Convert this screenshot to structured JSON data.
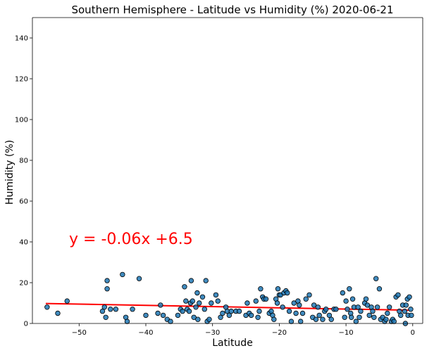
{
  "chart_data": {
    "type": "scatter",
    "title": "Southern Hemisphere - Latitude vs Humidity (%) 2020-06-21",
    "xlabel": "Latitude",
    "ylabel": "Humidity (%)",
    "xlim": [
      -57,
      1.5
    ],
    "ylim": [
      0,
      150
    ],
    "xticks": [
      -50,
      -40,
      -30,
      -20,
      -10,
      0
    ],
    "yticks": [
      0,
      20,
      40,
      60,
      80,
      100,
      120,
      140
    ],
    "grid": false,
    "annotation": "y = -0.06x +6.5",
    "colors": {
      "point": "#1f77b4",
      "edge": "#000000",
      "line": "#ff0000"
    },
    "regression": {
      "x": [
        -55,
        -0.5
      ],
      "y": [
        9.8,
        6.5
      ]
    },
    "series": [
      {
        "points": [
          [
            -54.8,
            8
          ],
          [
            -53.2,
            5
          ],
          [
            -51.8,
            11
          ],
          [
            -46.5,
            6
          ],
          [
            -46.2,
            8
          ],
          [
            -46,
            3
          ],
          [
            -45.8,
            21
          ],
          [
            -45.8,
            17
          ],
          [
            -45.3,
            7
          ],
          [
            -44.5,
            7
          ],
          [
            -43.5,
            24
          ],
          [
            -43,
            3
          ],
          [
            -42.8,
            1
          ],
          [
            -42,
            7
          ],
          [
            -41,
            22
          ],
          [
            -40,
            4
          ],
          [
            -38.2,
            5
          ],
          [
            -37.8,
            9
          ],
          [
            -37.4,
            4
          ],
          [
            -36.8,
            2
          ],
          [
            -36.3,
            1
          ],
          [
            -35.2,
            4
          ],
          [
            -34.8,
            7
          ],
          [
            -34.5,
            6
          ],
          [
            -34.2,
            18
          ],
          [
            -34,
            11
          ],
          [
            -33.8,
            7
          ],
          [
            -33.5,
            6
          ],
          [
            -33.3,
            10
          ],
          [
            -33.2,
            21
          ],
          [
            -33,
            11
          ],
          [
            -32.8,
            3
          ],
          [
            -32.5,
            8
          ],
          [
            -32.3,
            15
          ],
          [
            -32.2,
            2
          ],
          [
            -32,
            10
          ],
          [
            -31.5,
            13
          ],
          [
            -31.2,
            7
          ],
          [
            -31,
            21
          ],
          [
            -30.8,
            1
          ],
          [
            -30.5,
            2
          ],
          [
            -30.2,
            10
          ],
          [
            -29.5,
            14
          ],
          [
            -29.2,
            11
          ],
          [
            -28.8,
            3
          ],
          [
            -28.5,
            5
          ],
          [
            -28,
            8
          ],
          [
            -27.8,
            6
          ],
          [
            -27.5,
            4
          ],
          [
            -27.2,
            6
          ],
          [
            -26.5,
            6
          ],
          [
            -26,
            6
          ],
          [
            -25,
            4
          ],
          [
            -24.8,
            10
          ],
          [
            -24.5,
            5
          ],
          [
            -24.2,
            4
          ],
          [
            -23.5,
            11
          ],
          [
            -23.2,
            3
          ],
          [
            -23,
            6
          ],
          [
            -22.8,
            17
          ],
          [
            -22.5,
            13
          ],
          [
            -22.3,
            12
          ],
          [
            -22,
            12
          ],
          [
            -21.5,
            5
          ],
          [
            -21.2,
            6
          ],
          [
            -21,
            4
          ],
          [
            -20.8,
            2
          ],
          [
            -20.5,
            12
          ],
          [
            -20.3,
            10
          ],
          [
            -20.2,
            17
          ],
          [
            -20,
            14
          ],
          [
            -19.8,
            14
          ],
          [
            -19.5,
            8
          ],
          [
            -19.3,
            15
          ],
          [
            -19,
            16
          ],
          [
            -18.8,
            15
          ],
          [
            -18.5,
            6
          ],
          [
            -18.2,
            1
          ],
          [
            -17.8,
            10
          ],
          [
            -17.5,
            5
          ],
          [
            -17.2,
            11
          ],
          [
            -17,
            9
          ],
          [
            -16.8,
            1
          ],
          [
            -16.5,
            5
          ],
          [
            -16,
            12
          ],
          [
            -15.5,
            14
          ],
          [
            -15,
            3
          ],
          [
            -14.8,
            9
          ],
          [
            -14.5,
            2
          ],
          [
            -14.2,
            8
          ],
          [
            -14,
            4
          ],
          [
            -13.5,
            2
          ],
          [
            -13.2,
            6
          ],
          [
            -13,
            7
          ],
          [
            -12.5,
            4
          ],
          [
            -12.2,
            2
          ],
          [
            -11.8,
            7
          ],
          [
            -11.5,
            7
          ],
          [
            -10.5,
            15
          ],
          [
            -10.2,
            3
          ],
          [
            -10,
            11
          ],
          [
            -9.8,
            7
          ],
          [
            -9.5,
            17
          ],
          [
            -9.3,
            5
          ],
          [
            -9.2,
            3
          ],
          [
            -9,
            12
          ],
          [
            -8.8,
            8
          ],
          [
            -8.5,
            1
          ],
          [
            -8.2,
            8
          ],
          [
            -8,
            3
          ],
          [
            -7.8,
            6
          ],
          [
            -7.2,
            10
          ],
          [
            -7,
            12
          ],
          [
            -6.8,
            9
          ],
          [
            -6.5,
            4
          ],
          [
            -6.2,
            8
          ],
          [
            -6,
            6
          ],
          [
            -5.8,
            3
          ],
          [
            -5.5,
            22
          ],
          [
            -5.3,
            8
          ],
          [
            -5,
            17
          ],
          [
            -4.8,
            2
          ],
          [
            -4.5,
            3
          ],
          [
            -4.2,
            1
          ],
          [
            -4,
            2
          ],
          [
            -3.8,
            5
          ],
          [
            -3.5,
            8
          ],
          [
            -3.2,
            1
          ],
          [
            -3,
            2
          ],
          [
            -2.8,
            1
          ],
          [
            -2.5,
            13
          ],
          [
            -2.2,
            14
          ],
          [
            -2,
            6
          ],
          [
            -1.8,
            4
          ],
          [
            -1.5,
            9
          ],
          [
            -1.2,
            6
          ],
          [
            -1,
            9
          ],
          [
            -0.8,
            12
          ],
          [
            -0.5,
            13
          ],
          [
            -0.3,
            7
          ],
          [
            -0.7,
            4
          ],
          [
            -1.1,
            0
          ],
          [
            -0.2,
            4
          ]
        ]
      }
    ]
  }
}
